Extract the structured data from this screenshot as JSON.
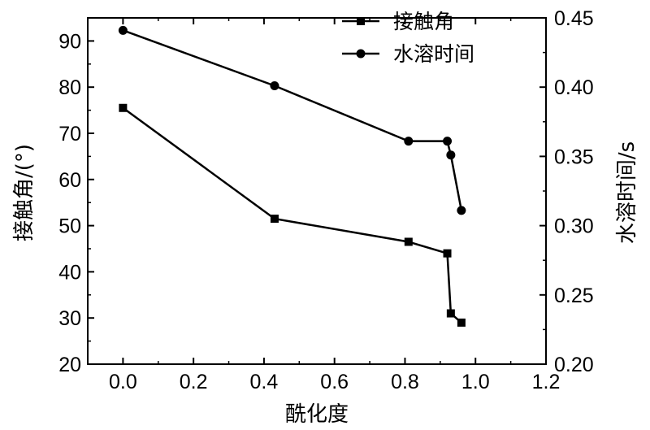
{
  "chart_data": {
    "type": "line",
    "xlabel": "酰化度",
    "ylabel_left": "接触角/(°)",
    "ylabel_right": "水溶时间/s",
    "xlim": [
      -0.1,
      1.2
    ],
    "ylim_left": [
      20,
      95
    ],
    "ylim_right": [
      0.2,
      0.45
    ],
    "xticks": [
      0.0,
      0.2,
      0.4,
      0.6,
      0.8,
      1.0,
      1.2
    ],
    "xtick_labels": [
      "0.0",
      "0.2",
      "0.4",
      "0.6",
      "0.8",
      "1.0",
      "1.2"
    ],
    "yticks_left": [
      20,
      30,
      40,
      50,
      60,
      70,
      80,
      90
    ],
    "ytick_labels_left": [
      "20",
      "30",
      "40",
      "50",
      "60",
      "70",
      "80",
      "90"
    ],
    "yticks_right": [
      0.2,
      0.25,
      0.3,
      0.35,
      0.4,
      0.45
    ],
    "ytick_labels_right": [
      "0.20",
      "0.25",
      "0.30",
      "0.35",
      "0.40",
      "0.45"
    ],
    "legend_position": "top-right",
    "series": [
      {
        "name": "接触角",
        "axis": "left",
        "marker": "square",
        "color": "#000000",
        "x": [
          0.0,
          0.43,
          0.81,
          0.92,
          0.93,
          0.96
        ],
        "y": [
          75.5,
          51.5,
          46.5,
          44.0,
          31.0,
          29.0
        ]
      },
      {
        "name": "水溶时间",
        "axis": "right",
        "marker": "circle",
        "color": "#000000",
        "x": [
          0.0,
          0.43,
          0.81,
          0.92,
          0.93,
          0.96
        ],
        "y": [
          0.441,
          0.401,
          0.361,
          0.361,
          0.351,
          0.311
        ]
      }
    ]
  }
}
